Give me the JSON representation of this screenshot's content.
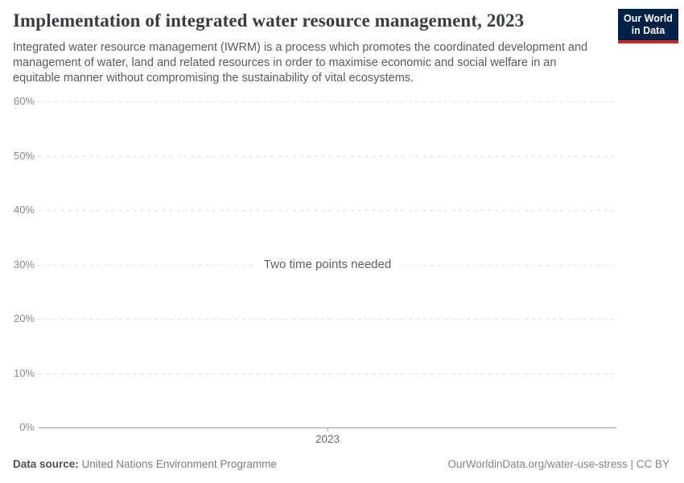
{
  "header": {
    "title": "Implementation of integrated water resource management, 2023",
    "subtitle": "Integrated water resource management (IWRM) is a process which promotes the coordinated development and management of water, land and related resources in order to maximise economic and social welfare in an equitable manner without compromising the sustainability of vital ecosystems."
  },
  "logo": {
    "line1": "Our World",
    "line2": "in Data",
    "bg_color": "#002147",
    "accent_color": "#c32c2a",
    "text_color": "#ffffff"
  },
  "chart_data": {
    "type": "line",
    "title": "Implementation of integrated water resource management, 2023",
    "series": [],
    "message": "Two time points needed",
    "x": {
      "ticks": [
        "2023"
      ]
    },
    "y": {
      "min": 0,
      "max": 60,
      "grid": "dashed-horizontal",
      "ticks": [
        {
          "label": "0%",
          "value": 0
        },
        {
          "label": "10%",
          "value": 10
        },
        {
          "label": "20%",
          "value": 20
        },
        {
          "label": "30%",
          "value": 30
        },
        {
          "label": "40%",
          "value": 40
        },
        {
          "label": "50%",
          "value": 50
        },
        {
          "label": "60%",
          "value": 60
        }
      ]
    },
    "legend": "none"
  },
  "footer": {
    "source_label": "Data source:",
    "source_value": " United Nations Environment Programme",
    "link_text": "OurWorldinData.org/water-use-stress",
    "divider": " | ",
    "license": "CC BY"
  }
}
